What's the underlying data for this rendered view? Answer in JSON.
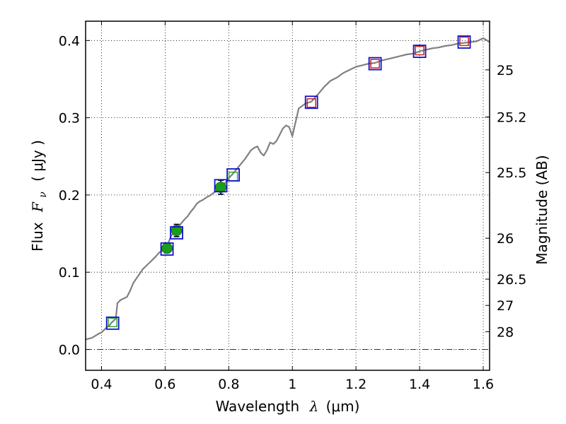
{
  "chart_data": {
    "type": "line",
    "title": "",
    "xlabel_prefix": "Wavelength",
    "xlabel_symbol": "λ",
    "xlabel_unit": "(μm)",
    "ylabel_prefix": "Flux",
    "ylabel_symbol": "F",
    "ylabel_subscript": "ν",
    "ylabel_unit": "( μJy )",
    "y2label": "Magnitude (AB)",
    "xlim": [
      0.35,
      1.62
    ],
    "ylim": [
      -0.027,
      0.425
    ],
    "grid": true,
    "x_ticks": [
      0.4,
      0.6,
      0.8,
      1.0,
      1.2,
      1.4,
      1.6
    ],
    "x_tick_labels": [
      "0.4",
      "0.6",
      "0.8",
      "1",
      "1.2",
      "1.4",
      "1.6"
    ],
    "y_ticks": [
      0.0,
      0.1,
      0.2,
      0.3,
      0.4
    ],
    "y_tick_labels": [
      "0.0",
      "0.1",
      "0.2",
      "0.3",
      "0.4"
    ],
    "y2_ticks": [
      {
        "label": "25",
        "flux": 0.362
      },
      {
        "label": "25.2",
        "flux": 0.301
      },
      {
        "label": "25.5",
        "flux": 0.229
      },
      {
        "label": "26",
        "flux": 0.144
      },
      {
        "label": "26.5",
        "flux": 0.091
      },
      {
        "label": "27",
        "flux": 0.057
      },
      {
        "label": "28",
        "flux": 0.023
      }
    ],
    "series": [
      {
        "name": "model-spectrum",
        "style": "line",
        "color": "#808080",
        "x": [
          0.35,
          0.37,
          0.39,
          0.4,
          0.41,
          0.42,
          0.425,
          0.43,
          0.44,
          0.445,
          0.45,
          0.46,
          0.47,
          0.48,
          0.49,
          0.5,
          0.51,
          0.52,
          0.53,
          0.54,
          0.55,
          0.56,
          0.57,
          0.58,
          0.59,
          0.6,
          0.61,
          0.62,
          0.63,
          0.64,
          0.65,
          0.66,
          0.67,
          0.68,
          0.69,
          0.7,
          0.71,
          0.72,
          0.73,
          0.74,
          0.75,
          0.76,
          0.77,
          0.78,
          0.79,
          0.8,
          0.81,
          0.82,
          0.83,
          0.84,
          0.85,
          0.86,
          0.87,
          0.88,
          0.89,
          0.9,
          0.91,
          0.92,
          0.93,
          0.94,
          0.95,
          0.96,
          0.97,
          0.98,
          0.99,
          1.0,
          1.02,
          1.04,
          1.06,
          1.08,
          1.1,
          1.12,
          1.14,
          1.16,
          1.18,
          1.2,
          1.22,
          1.24,
          1.26,
          1.28,
          1.3,
          1.32,
          1.34,
          1.36,
          1.38,
          1.4,
          1.42,
          1.44,
          1.46,
          1.48,
          1.5,
          1.52,
          1.54,
          1.56,
          1.58,
          1.6,
          1.62
        ],
        "y": [
          0.013,
          0.015,
          0.02,
          0.022,
          0.026,
          0.03,
          0.031,
          0.034,
          0.038,
          0.04,
          0.06,
          0.064,
          0.066,
          0.068,
          0.076,
          0.086,
          0.092,
          0.098,
          0.104,
          0.108,
          0.112,
          0.116,
          0.12,
          0.125,
          0.128,
          0.132,
          0.138,
          0.148,
          0.152,
          0.157,
          0.163,
          0.168,
          0.172,
          0.178,
          0.183,
          0.189,
          0.192,
          0.194,
          0.197,
          0.199,
          0.202,
          0.205,
          0.208,
          0.212,
          0.216,
          0.222,
          0.226,
          0.231,
          0.236,
          0.241,
          0.246,
          0.252,
          0.258,
          0.261,
          0.263,
          0.255,
          0.251,
          0.258,
          0.268,
          0.266,
          0.27,
          0.278,
          0.286,
          0.29,
          0.288,
          0.276,
          0.312,
          0.318,
          0.321,
          0.33,
          0.34,
          0.348,
          0.352,
          0.358,
          0.362,
          0.366,
          0.368,
          0.37,
          0.371,
          0.374,
          0.376,
          0.378,
          0.38,
          0.382,
          0.383,
          0.386,
          0.388,
          0.39,
          0.391,
          0.393,
          0.394,
          0.396,
          0.397,
          0.398,
          0.399,
          0.403,
          0.398
        ]
      },
      {
        "name": "photometry-observed",
        "style": "scatter",
        "marker": "circle",
        "color": "#1a9e1a",
        "x": [
          0.606,
          0.636,
          0.775
        ],
        "y": [
          0.131,
          0.154,
          0.21
        ],
        "yerr": [
          0.006,
          0.008,
          0.009
        ]
      },
      {
        "name": "model-photometry",
        "style": "scatter",
        "marker": "square-blue",
        "color": "#1111cc",
        "x": [
          0.435,
          0.606,
          0.636,
          0.775,
          0.814,
          1.06,
          1.26,
          1.4,
          1.54
        ],
        "y": [
          0.034,
          0.13,
          0.151,
          0.212,
          0.226,
          0.32,
          0.37,
          0.386,
          0.398
        ]
      },
      {
        "name": "upper-limits-red",
        "style": "scatter",
        "marker": "square-red",
        "color": "#cc2222",
        "x": [
          1.06,
          1.26,
          1.4,
          1.54
        ],
        "y": [
          0.319,
          0.37,
          0.387,
          0.399
        ]
      },
      {
        "name": "upper-limits-green",
        "style": "scatter",
        "marker": "square-green",
        "color": "#33aa33",
        "x": [
          0.435,
          0.814
        ],
        "y": [
          0.035,
          0.224
        ]
      }
    ]
  }
}
